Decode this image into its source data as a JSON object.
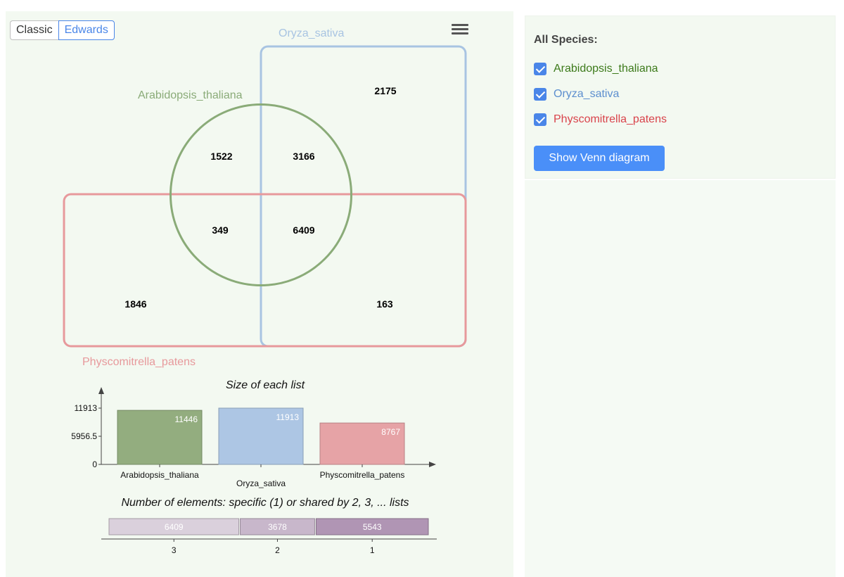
{
  "toggle": {
    "classic_label": "Classic",
    "edwards_label": "Edwards",
    "selected": "Edwards"
  },
  "menu": {
    "icon": "hamburger-menu-icon"
  },
  "venn": {
    "sets": [
      {
        "name": "Arabidopsis_thaliana",
        "color": "#8aab78"
      },
      {
        "name": "Oryza_sativa",
        "color": "#a8c4e2"
      },
      {
        "name": "Physcomitrella_patens",
        "color": "#e7999c"
      }
    ],
    "regions": {
      "oryza_only": "2175",
      "arabidopsis_only": "1522",
      "arabidopsis_oryza": "3166",
      "arabidopsis_physco": "349",
      "all_three": "6409",
      "physco_only": "1846",
      "oryza_physco": "163"
    }
  },
  "chart_data": [
    {
      "type": "bar",
      "title": "Size of each list",
      "categories": [
        "Arabidopsis_thaliana",
        "Oryza_sativa",
        "Physcomitrella_patens"
      ],
      "values": [
        11446,
        11913,
        8767
      ],
      "colors": [
        "#93ad7f",
        "#adc6e4",
        "#e6a3a6"
      ],
      "yticks": [
        "11913",
        "5956.5",
        "0"
      ],
      "ylim": [
        0,
        11913
      ]
    },
    {
      "type": "bar",
      "title": "Number of elements: specific (1) or shared by 2, 3, ... lists",
      "orientation": "horizontal-stacked",
      "categories": [
        "3",
        "2",
        "1"
      ],
      "values": [
        6409,
        3678,
        5543
      ],
      "colors": [
        "#dad0dc",
        "#c8b7cb",
        "#b095b4"
      ]
    }
  ],
  "sidebar": {
    "heading": "All Species:",
    "species": [
      {
        "label": "Arabidopsis_thaliana",
        "checked": true,
        "color": "#3c7a1a"
      },
      {
        "label": "Oryza_sativa",
        "checked": true,
        "color": "#5d8fcf"
      },
      {
        "label": "Physcomitrella_patens",
        "checked": true,
        "color": "#d9434b"
      }
    ],
    "button_label": "Show Venn diagram"
  }
}
